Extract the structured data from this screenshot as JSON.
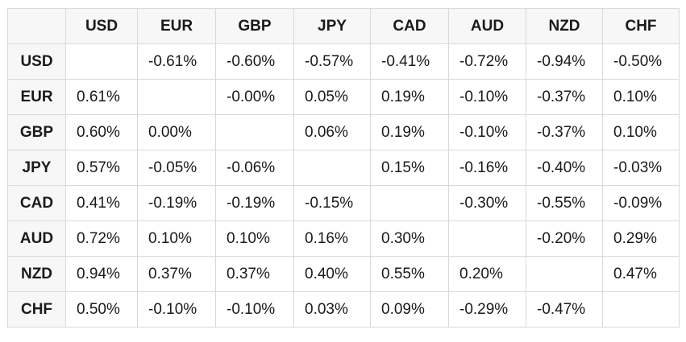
{
  "chart_data": {
    "type": "table",
    "title": "",
    "columns": [
      "USD",
      "EUR",
      "GBP",
      "JPY",
      "CAD",
      "AUD",
      "NZD",
      "CHF"
    ],
    "rows": [
      {
        "label": "USD",
        "values": [
          "",
          "-0.61%",
          "-0.60%",
          "-0.57%",
          "-0.41%",
          "-0.72%",
          "-0.94%",
          "-0.50%"
        ]
      },
      {
        "label": "EUR",
        "values": [
          "0.61%",
          "",
          "-0.00%",
          "0.05%",
          "0.19%",
          "-0.10%",
          "-0.37%",
          "0.10%"
        ]
      },
      {
        "label": "GBP",
        "values": [
          "0.60%",
          "0.00%",
          "",
          "0.06%",
          "0.19%",
          "-0.10%",
          "-0.37%",
          "0.10%"
        ]
      },
      {
        "label": "JPY",
        "values": [
          "0.57%",
          "-0.05%",
          "-0.06%",
          "",
          "0.15%",
          "-0.16%",
          "-0.40%",
          "-0.03%"
        ]
      },
      {
        "label": "CAD",
        "values": [
          "0.41%",
          "-0.19%",
          "-0.19%",
          "-0.15%",
          "",
          "-0.30%",
          "-0.55%",
          "-0.09%"
        ]
      },
      {
        "label": "AUD",
        "values": [
          "0.72%",
          "0.10%",
          "0.10%",
          "0.16%",
          "0.30%",
          "",
          "-0.20%",
          "0.29%"
        ]
      },
      {
        "label": "NZD",
        "values": [
          "0.94%",
          "0.37%",
          "0.37%",
          "0.40%",
          "0.55%",
          "0.20%",
          "",
          "0.47%"
        ]
      },
      {
        "label": "CHF",
        "values": [
          "0.50%",
          "-0.10%",
          "-0.10%",
          "0.03%",
          "0.09%",
          "-0.29%",
          "-0.47%",
          ""
        ]
      }
    ]
  }
}
